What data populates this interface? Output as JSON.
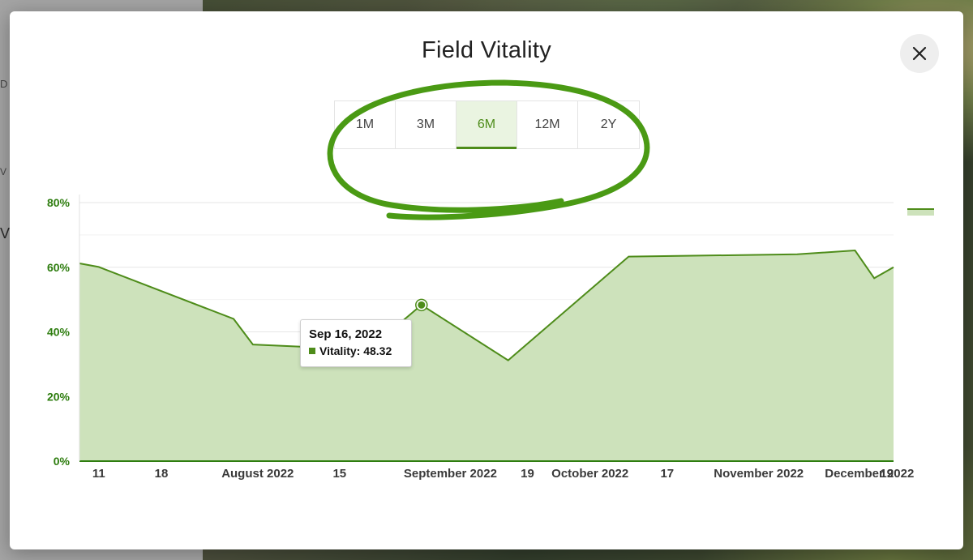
{
  "background_panel": {
    "fragments": [
      "D",
      "V",
      "V"
    ]
  },
  "modal": {
    "title": "Field Vitality",
    "close_icon": "close-icon"
  },
  "range_tabs": [
    {
      "label": "1M",
      "active": false
    },
    {
      "label": "3M",
      "active": false
    },
    {
      "label": "6M",
      "active": true
    },
    {
      "label": "12M",
      "active": false
    },
    {
      "label": "2Y",
      "active": false
    }
  ],
  "colors": {
    "accent": "#4e8c1a",
    "area_fill": "#cde2bb",
    "axis_label": "#2e7d0f",
    "annotation": "#4a9a14"
  },
  "chart_data": {
    "type": "area",
    "title": "",
    "xlabel": "",
    "ylabel": "",
    "ylim": [
      0,
      80
    ],
    "y_ticks": [
      "0%",
      "20%",
      "40%",
      "60%",
      "80%"
    ],
    "x_ticks": [
      "11",
      "18",
      "August 2022",
      "15",
      "September 2022",
      "19",
      "October 2022",
      "17",
      "November 2022",
      "December 2022",
      "19"
    ],
    "grid": true,
    "series": [
      {
        "name": "Vitality",
        "points": [
          {
            "x": "2022-07-07",
            "y": 61.2
          },
          {
            "x": "2022-07-11",
            "y": 60.1
          },
          {
            "x": "2022-08-08",
            "y": 44.0
          },
          {
            "x": "2022-08-12",
            "y": 36.1
          },
          {
            "x": "2022-09-05",
            "y": 34.5
          },
          {
            "x": "2022-09-16",
            "y": 48.32
          },
          {
            "x": "2022-10-04",
            "y": 31.2
          },
          {
            "x": "2022-10-29",
            "y": 63.3
          },
          {
            "x": "2022-12-03",
            "y": 64.0
          },
          {
            "x": "2022-12-15",
            "y": 65.2
          },
          {
            "x": "2022-12-19",
            "y": 56.6
          },
          {
            "x": "2022-12-23",
            "y": 60.0
          }
        ]
      }
    ],
    "tooltip": {
      "date": "Sep 16, 2022",
      "series": "Vitality",
      "value": "48.32",
      "text": "Vitality: 48.32"
    }
  }
}
